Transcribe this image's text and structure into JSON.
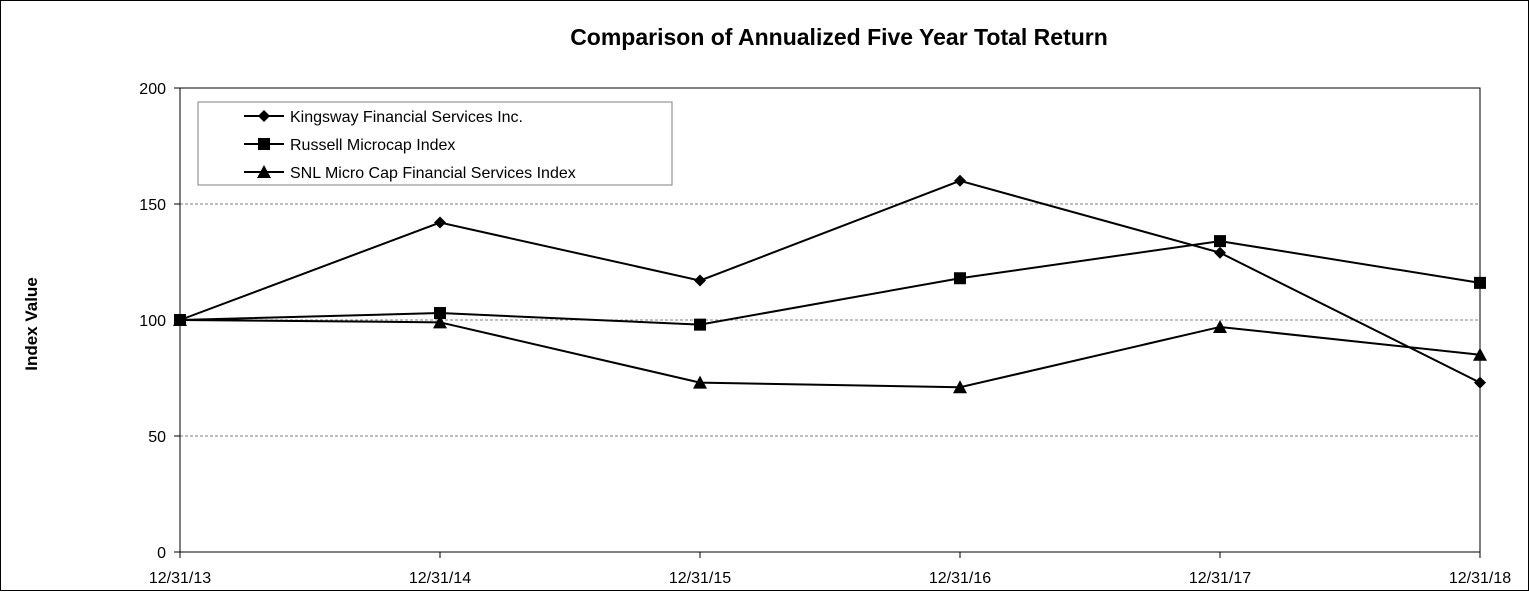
{
  "chart_data": {
    "type": "line",
    "title": "Comparison of Annualized Five Year Total Return",
    "xlabel": "",
    "ylabel": "Index Value",
    "categories": [
      "12/31/13",
      "12/31/14",
      "12/31/15",
      "12/31/16",
      "12/31/17",
      "12/31/18"
    ],
    "ylim": [
      0,
      200
    ],
    "yticks": [
      0,
      50,
      100,
      150,
      200
    ],
    "grid": "horizontal dashed",
    "legend_position": "top-left",
    "series": [
      {
        "name": "Kingsway Financial Services  Inc.",
        "marker": "diamond",
        "color": "#000000",
        "values": [
          100,
          142,
          117,
          160,
          129,
          73
        ]
      },
      {
        "name": "Russell Microcap Index",
        "marker": "square",
        "color": "#000000",
        "values": [
          100,
          103,
          98,
          118,
          134,
          116
        ]
      },
      {
        "name": "SNL Micro Cap Financial Services Index",
        "marker": "triangle",
        "color": "#000000",
        "values": [
          100,
          99,
          73,
          71,
          97,
          85
        ]
      }
    ]
  }
}
